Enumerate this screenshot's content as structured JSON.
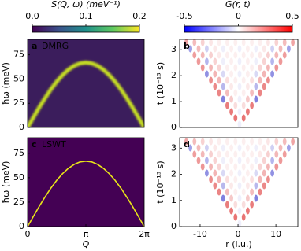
{
  "chart_data": [
    {
      "type": "line",
      "label": "a",
      "title": "DMRG",
      "ylabel": "ħω (meV)",
      "xlim": [
        0,
        6.283
      ],
      "ylim": [
        0,
        91
      ],
      "yticks": [
        0,
        25,
        50,
        75
      ],
      "background": "#3b1d5c",
      "series": [
        {
          "color": "#c8e020",
          "width": 5,
          "x": [
            0,
            0.314,
            0.628,
            0.942,
            1.257,
            1.571,
            1.885,
            2.199,
            2.513,
            2.827,
            3.142,
            3.456,
            3.77,
            4.084,
            4.398,
            4.712,
            5.027,
            5.341,
            5.655,
            5.969,
            6.283
          ],
          "values": [
            0,
            10.5,
            20.7,
            30.4,
            39.4,
            47.4,
            54.2,
            59.7,
            63.7,
            66.2,
            67,
            66.2,
            63.7,
            59.7,
            54.2,
            47.4,
            39.4,
            30.4,
            20.7,
            10.5,
            0
          ]
        }
      ]
    },
    {
      "type": "heatmap",
      "label": "b",
      "ylabel": "t (10⁻¹³ s)",
      "xlim": [
        -15.4,
        15.8
      ],
      "ylim": [
        0,
        3.4
      ],
      "yticks": [
        0,
        1,
        2,
        3
      ]
    },
    {
      "type": "line",
      "label": "c",
      "title": "LSWT",
      "ylabel": "ħω (meV)",
      "xlabel": "Q",
      "xlim": [
        0,
        6.283
      ],
      "ylim": [
        0,
        91
      ],
      "yticks": [
        0,
        25,
        50,
        75
      ],
      "xticks": [
        0,
        {
          "value": 3.1416,
          "label": "π"
        },
        {
          "value": 6.2832,
          "label": "2π"
        }
      ],
      "background": "#440154",
      "series": [
        {
          "color": "#e8e419",
          "width": 1.6,
          "x": [
            0,
            0.314,
            0.628,
            0.942,
            1.257,
            1.571,
            1.885,
            2.199,
            2.513,
            2.827,
            3.142,
            3.456,
            3.77,
            4.084,
            4.398,
            4.712,
            5.027,
            5.341,
            5.655,
            5.969,
            6.283
          ],
          "values": [
            0,
            10.5,
            20.7,
            30.4,
            39.4,
            47.4,
            54.2,
            59.7,
            63.7,
            66.2,
            67,
            66.2,
            63.7,
            59.7,
            54.2,
            47.4,
            39.4,
            30.4,
            20.7,
            10.5,
            0
          ]
        }
      ]
    },
    {
      "type": "heatmap",
      "label": "d",
      "ylabel": "t (10⁻¹³ s)",
      "xlabel": "r (l.u.)",
      "xlim": [
        -15.4,
        15.8
      ],
      "ylim": [
        0,
        3.4
      ],
      "yticks": [
        0,
        1,
        2,
        3
      ],
      "xticks": [
        -10,
        0,
        10
      ]
    }
  ],
  "colorbars": [
    {
      "title": "S(Q, ω) (meV⁻¹)",
      "lim": [
        0,
        0.2
      ],
      "ticks": [
        {
          "value": 0,
          "label": "0.0"
        },
        0.1,
        0.2
      ]
    },
    {
      "title": "G(r, t)",
      "lim": [
        -0.5,
        0.5
      ],
      "ticks": [
        -0.5,
        0,
        0.5
      ]
    }
  ]
}
